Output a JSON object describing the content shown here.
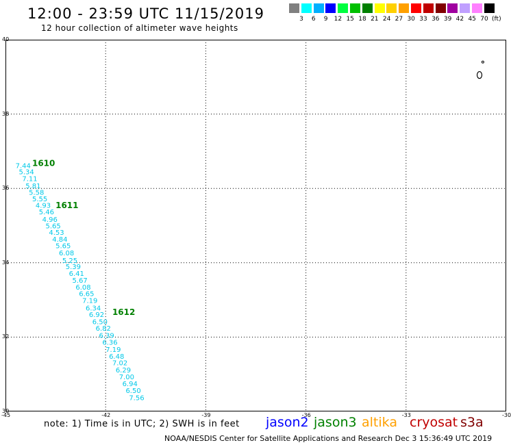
{
  "header": {
    "title": "12:00 - 23:59 UTC 11/15/2019",
    "subtitle": "12 hour collection of altimeter wave heights"
  },
  "legend": {
    "colors": [
      "#808080",
      "#00ffff",
      "#00b0ff",
      "#0000ff",
      "#00ff40",
      "#00c000",
      "#008000",
      "#ffff00",
      "#ffd000",
      "#ffa000",
      "#ff0000",
      "#c00000",
      "#800000",
      "#a000a0",
      "#c0a0ff",
      "#ff80ff",
      "#000000"
    ],
    "labels": [
      "3",
      "6",
      "9",
      "12",
      "15",
      "18",
      "21",
      "24",
      "27",
      "30",
      "33",
      "36",
      "39",
      "42",
      "45",
      "70",
      "(ft)"
    ]
  },
  "map": {
    "x_ticks": [
      "-45",
      "-42",
      "-39",
      "-36",
      "-33",
      "-30"
    ],
    "y_ticks": [
      "30",
      "32",
      "34",
      "36",
      "38",
      "40"
    ],
    "x_values": [
      -45,
      -42,
      -39,
      -36,
      -33,
      -30
    ],
    "y_values": [
      30,
      32,
      34,
      36,
      38,
      40
    ],
    "swh_points": [
      {
        "lon": -44.7,
        "lat": 36.55,
        "v": "7.44"
      },
      {
        "lon": -44.6,
        "lat": 36.38,
        "v": "5.34"
      },
      {
        "lon": -44.5,
        "lat": 36.2,
        "v": "7.11"
      },
      {
        "lon": -44.4,
        "lat": 36.0,
        "v": "5.81"
      },
      {
        "lon": -44.3,
        "lat": 35.83,
        "v": "5.58"
      },
      {
        "lon": -44.2,
        "lat": 35.65,
        "v": "5.55"
      },
      {
        "lon": -44.1,
        "lat": 35.48,
        "v": "4.93"
      },
      {
        "lon": -44.0,
        "lat": 35.3,
        "v": "5.46"
      },
      {
        "lon": -43.9,
        "lat": 35.1,
        "v": "4.96"
      },
      {
        "lon": -43.8,
        "lat": 34.93,
        "v": "5.65"
      },
      {
        "lon": -43.7,
        "lat": 34.75,
        "v": "4.53"
      },
      {
        "lon": -43.6,
        "lat": 34.57,
        "v": "4.84"
      },
      {
        "lon": -43.5,
        "lat": 34.39,
        "v": "5.65"
      },
      {
        "lon": -43.4,
        "lat": 34.2,
        "v": "6.08"
      },
      {
        "lon": -43.3,
        "lat": 34.0,
        "v": "5.25"
      },
      {
        "lon": -43.2,
        "lat": 33.83,
        "v": "5.39"
      },
      {
        "lon": -43.1,
        "lat": 33.65,
        "v": "6.41"
      },
      {
        "lon": -43.0,
        "lat": 33.46,
        "v": "5.67"
      },
      {
        "lon": -42.9,
        "lat": 33.28,
        "v": "6.08"
      },
      {
        "lon": -42.8,
        "lat": 33.1,
        "v": "6.65"
      },
      {
        "lon": -42.7,
        "lat": 32.92,
        "v": "7.19"
      },
      {
        "lon": -42.6,
        "lat": 32.72,
        "v": "6.34"
      },
      {
        "lon": -42.5,
        "lat": 32.54,
        "v": "6.92"
      },
      {
        "lon": -42.4,
        "lat": 32.35,
        "v": "6.50"
      },
      {
        "lon": -42.3,
        "lat": 32.17,
        "v": "6.82"
      },
      {
        "lon": -42.2,
        "lat": 31.98,
        "v": "6.39"
      },
      {
        "lon": -42.1,
        "lat": 31.8,
        "v": "6.36"
      },
      {
        "lon": -42.0,
        "lat": 31.6,
        "v": "7.19"
      },
      {
        "lon": -41.9,
        "lat": 31.42,
        "v": "6.48"
      },
      {
        "lon": -41.8,
        "lat": 31.24,
        "v": "7.02"
      },
      {
        "lon": -41.7,
        "lat": 31.05,
        "v": "6.29"
      },
      {
        "lon": -41.6,
        "lat": 30.87,
        "v": "7.00"
      },
      {
        "lon": -41.5,
        "lat": 30.68,
        "v": "6.94"
      },
      {
        "lon": -41.4,
        "lat": 30.5,
        "v": "6.50"
      },
      {
        "lon": -41.3,
        "lat": 30.3,
        "v": "7.56"
      }
    ],
    "time_labels": [
      {
        "lon": -44.2,
        "lat": 36.6,
        "t": "1610"
      },
      {
        "lon": -43.5,
        "lat": 35.47,
        "t": "1611"
      },
      {
        "lon": -41.8,
        "lat": 32.6,
        "t": "1612"
      }
    ],
    "point_color": "#00c8e8",
    "time_color": "#008000"
  },
  "footer": {
    "note": "note: 1) Time is in UTC; 2) SWH is in feet",
    "satellites": [
      {
        "name": "jason2",
        "color": "#0000ff"
      },
      {
        "name": "jason3",
        "color": "#008000"
      },
      {
        "name": "altika",
        "color": "#ffa000"
      },
      {
        "name": "cryosat",
        "color": "#c00000"
      },
      {
        "name": "s3a",
        "color": "#800000"
      }
    ],
    "credit": "NOAA/NESDIS Center for Satellite Applications and Research   Dec  3 15:36:49 UTC 2019"
  }
}
